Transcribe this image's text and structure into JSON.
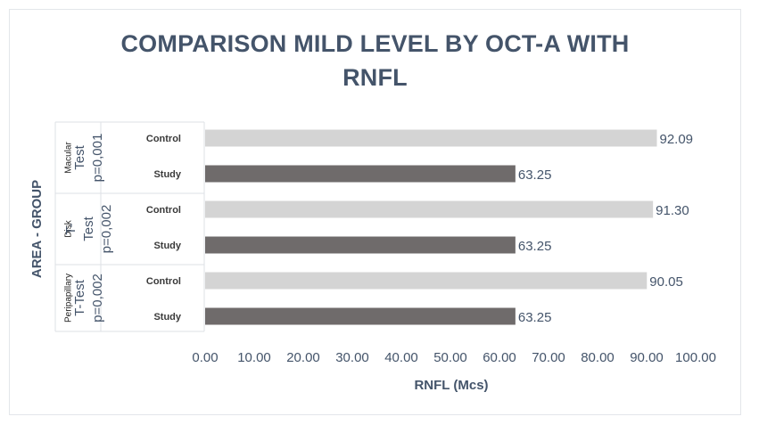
{
  "chart_data": {
    "type": "bar",
    "orientation": "horizontal",
    "title_lines": [
      "COMPARISON MILD LEVEL BY OCT-A WITH",
      "RNFL"
    ],
    "xlabel": "RNFL (Mcs)",
    "ylabel": "AREA - GROUP",
    "xlim": [
      0,
      100
    ],
    "x_ticks": [
      "0.00",
      "10.00",
      "20.00",
      "30.00",
      "40.00",
      "50.00",
      "60.00",
      "70.00",
      "80.00",
      "90.00",
      "100.00"
    ],
    "grid": false,
    "groups": [
      {
        "area": "Macular",
        "test_lines": [
          "Test",
          "p=0,001"
        ]
      },
      {
        "area": "Disk",
        "test_lines": [
          "T-",
          "Test",
          "p=0,002"
        ]
      },
      {
        "area": "Peripapillary",
        "test_lines": [
          "T-Test",
          "p=0,002"
        ]
      }
    ],
    "bars": [
      {
        "group": 0,
        "label": "Control",
        "value": 92.09,
        "value_label": "92.09"
      },
      {
        "group": 0,
        "label": "Study",
        "value": 63.25,
        "value_label": "63.25"
      },
      {
        "group": 1,
        "label": "Control",
        "value": 91.3,
        "value_label": "91.30"
      },
      {
        "group": 1,
        "label": "Study",
        "value": 63.25,
        "value_label": "63.25"
      },
      {
        "group": 2,
        "label": "Control",
        "value": 90.05,
        "value_label": "90.05"
      },
      {
        "group": 2,
        "label": "Study",
        "value": 63.25,
        "value_label": "63.25"
      }
    ],
    "colors": {
      "Control": "#d4d4d4",
      "Study": "#6f6b6b",
      "text": "#44546a",
      "axis_text": "#595959"
    }
  }
}
